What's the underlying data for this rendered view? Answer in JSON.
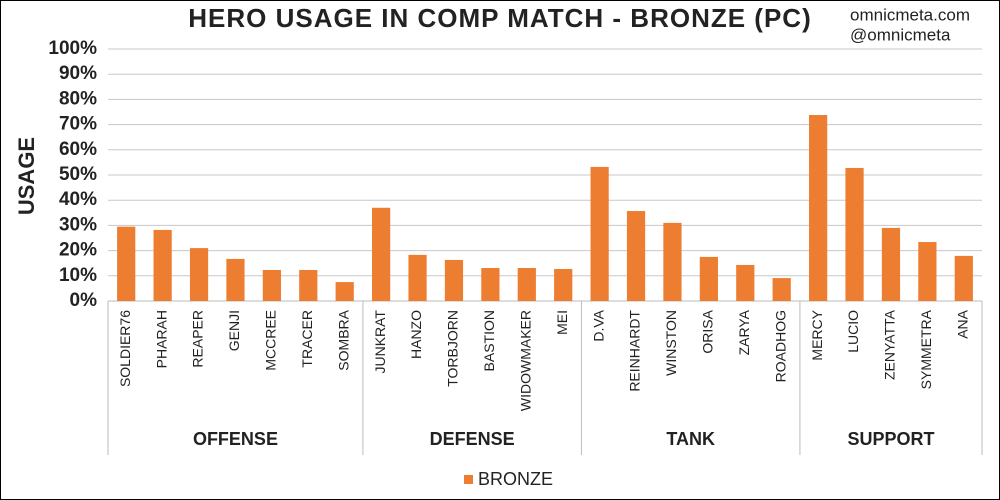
{
  "chart_data": {
    "type": "bar",
    "title": "HERO USAGE IN COMP MATCH - BRONZE (PC)",
    "annotations": [
      "omnicmeta.com",
      "@omnicmeta"
    ],
    "y_label": "USAGE",
    "groups": [
      {
        "name": "OFFENSE",
        "categories": [
          "SOLDIER76",
          "PHARAH",
          "REAPER",
          "GENJI",
          "MCCREE",
          "TRACER",
          "SOMBRA"
        ]
      },
      {
        "name": "DEFENSE",
        "categories": [
          "JUNKRAT",
          "HANZO",
          "TORBJORN",
          "BASTION",
          "WIDOWMAKER",
          "MEI"
        ]
      },
      {
        "name": "TANK",
        "categories": [
          "D.VA",
          "REINHARDT",
          "WINSTON",
          "ORISA",
          "ZARYA",
          "ROADHOG"
        ]
      },
      {
        "name": "SUPPORT",
        "categories": [
          "MERCY",
          "LUCIO",
          "ZENYATTA",
          "SYMMETRA",
          "ANA"
        ]
      }
    ],
    "series": [
      {
        "name": "BRONZE",
        "color": "#ED7D31",
        "values": [
          29.5,
          28.2,
          21,
          16.7,
          12.3,
          12.3,
          7.5,
          37,
          18.3,
          16.3,
          13.1,
          13.1,
          12.7,
          53.2,
          35.7,
          31,
          17.5,
          14.3,
          9.1,
          73.8,
          52.8,
          29,
          23.4,
          17.9
        ]
      }
    ],
    "ylim": [
      0,
      100
    ],
    "yticks": [
      {
        "value": 0,
        "label": "0%"
      },
      {
        "value": 10,
        "label": "10%"
      },
      {
        "value": 20,
        "label": "20%"
      },
      {
        "value": 30,
        "label": "30%"
      },
      {
        "value": 40,
        "label": "40%"
      },
      {
        "value": 50,
        "label": "50%"
      },
      {
        "value": 60,
        "label": "60%"
      },
      {
        "value": 70,
        "label": "70%"
      },
      {
        "value": 80,
        "label": "80%"
      },
      {
        "value": 90,
        "label": "90%"
      },
      {
        "value": 100,
        "label": "100%"
      }
    ],
    "grid": true,
    "legend": "bottom"
  }
}
